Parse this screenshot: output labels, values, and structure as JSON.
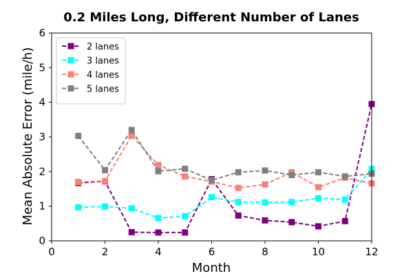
{
  "chart_data": {
    "type": "line",
    "title": "0.2 Miles Long, Different Number of Lanes",
    "xlabel": "Month",
    "ylabel": "Mean Absolute Error (mile/h)",
    "xlim": [
      0,
      12
    ],
    "ylim": [
      0,
      6
    ],
    "xticks": [
      0,
      2,
      4,
      6,
      8,
      10,
      12
    ],
    "yticks": [
      0,
      1,
      2,
      3,
      4,
      5,
      6
    ],
    "grid": false,
    "legend_position": "top-left",
    "x": [
      1,
      2,
      3,
      4,
      5,
      6,
      7,
      8,
      9,
      10,
      11,
      12
    ],
    "series": [
      {
        "name": "2 lanes",
        "color": "#800080",
        "marker": "square",
        "line_style": "dashed",
        "values": [
          1.67,
          1.72,
          0.25,
          0.24,
          0.24,
          1.78,
          0.73,
          0.59,
          0.54,
          0.42,
          0.57,
          3.95
        ]
      },
      {
        "name": "3 lanes",
        "color": "#00ffff",
        "marker": "square",
        "line_style": "dashed",
        "values": [
          0.97,
          0.99,
          0.94,
          0.66,
          0.71,
          1.26,
          1.12,
          1.11,
          1.12,
          1.23,
          1.19,
          2.07
        ]
      },
      {
        "name": "4 lanes",
        "color": "#fa8072",
        "marker": "square",
        "line_style": "dashed",
        "values": [
          1.7,
          1.73,
          3.04,
          2.19,
          1.86,
          1.71,
          1.53,
          1.63,
          1.98,
          1.55,
          1.82,
          1.66
        ]
      },
      {
        "name": "5 lanes",
        "color": "#808080",
        "marker": "square",
        "line_style": "dashed",
        "values": [
          3.03,
          2.04,
          3.2,
          2.01,
          2.08,
          1.75,
          1.98,
          2.03,
          1.9,
          1.98,
          1.86,
          1.94
        ]
      }
    ]
  }
}
